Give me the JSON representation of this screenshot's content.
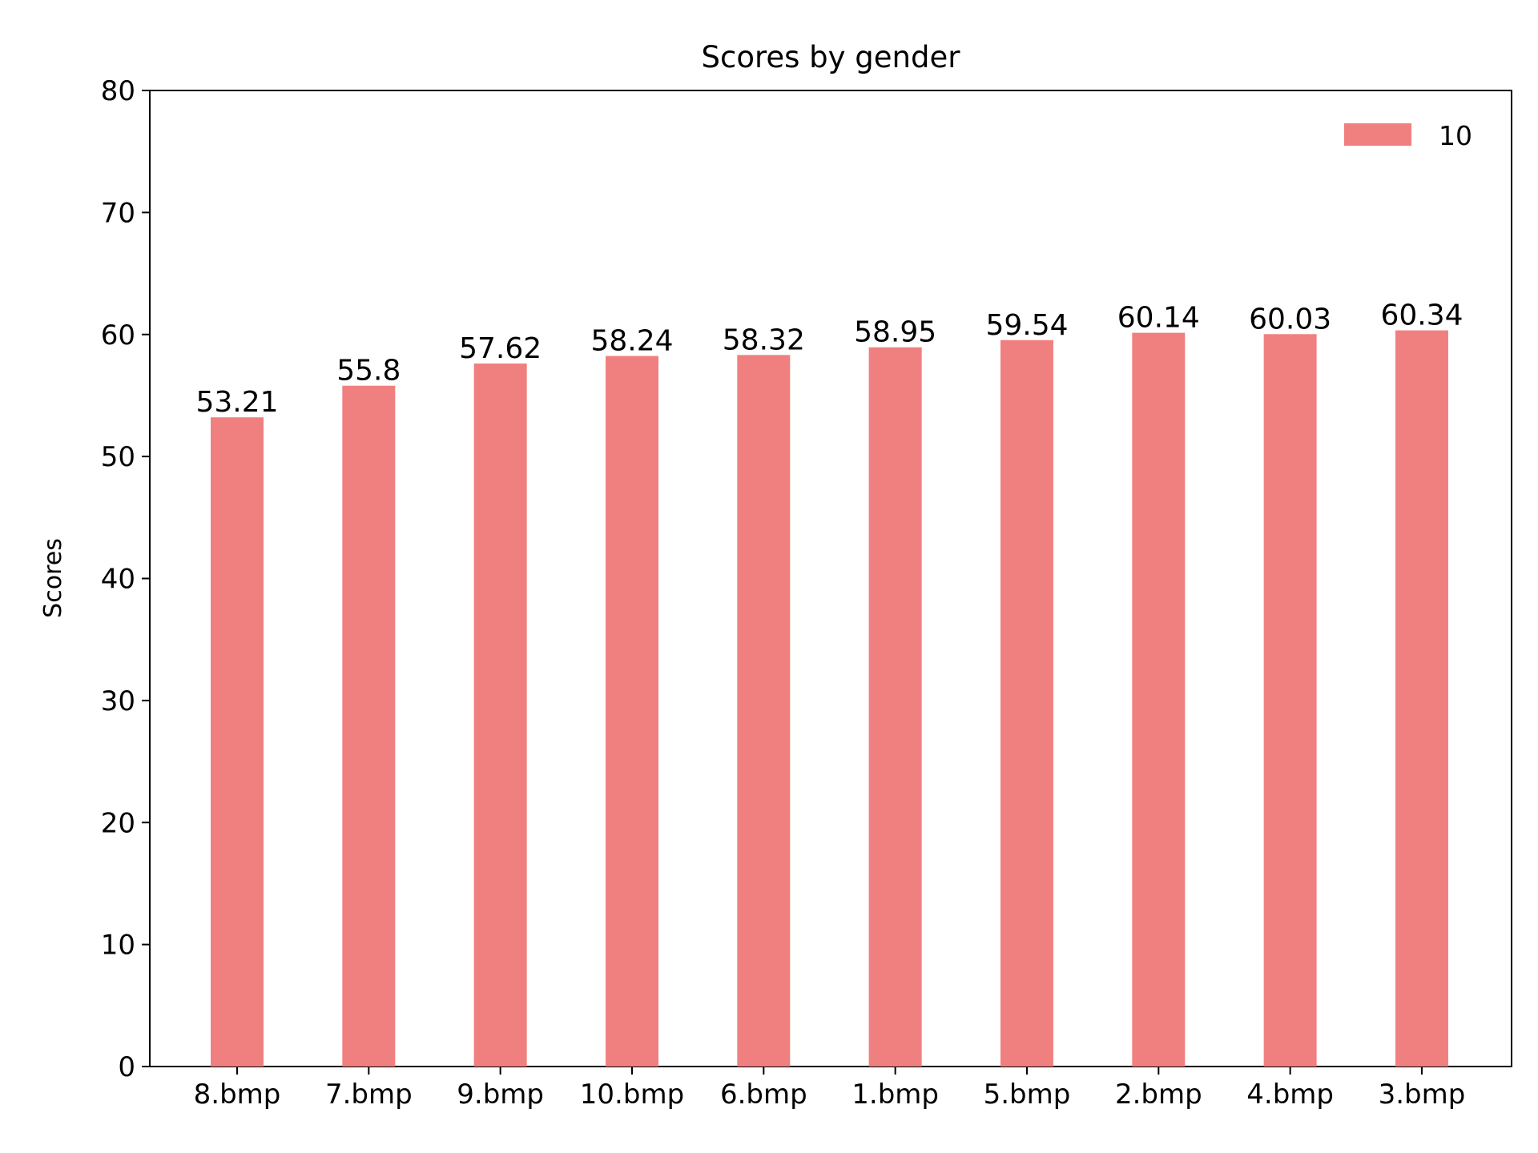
{
  "chart_data": {
    "type": "bar",
    "title": "Scores by gender",
    "xlabel": "",
    "ylabel": "Scores",
    "ylim": [
      0,
      80
    ],
    "yticks": [
      0,
      10,
      20,
      30,
      40,
      50,
      60,
      70,
      80
    ],
    "categories": [
      "8.bmp",
      "7.bmp",
      "9.bmp",
      "10.bmp",
      "6.bmp",
      "1.bmp",
      "5.bmp",
      "2.bmp",
      "4.bmp",
      "3.bmp"
    ],
    "series": [
      {
        "name": "10",
        "color": "#f08080",
        "values": [
          53.21,
          55.8,
          57.62,
          58.24,
          58.32,
          58.95,
          59.54,
          60.14,
          60.03,
          60.34
        ],
        "labels": [
          "53.21",
          "55.8",
          "57.62",
          "58.24",
          "58.32",
          "58.95",
          "59.54",
          "60.14",
          "60.03",
          "60.34"
        ]
      }
    ],
    "legend": {
      "placement": "top-right"
    },
    "grid": false
  }
}
